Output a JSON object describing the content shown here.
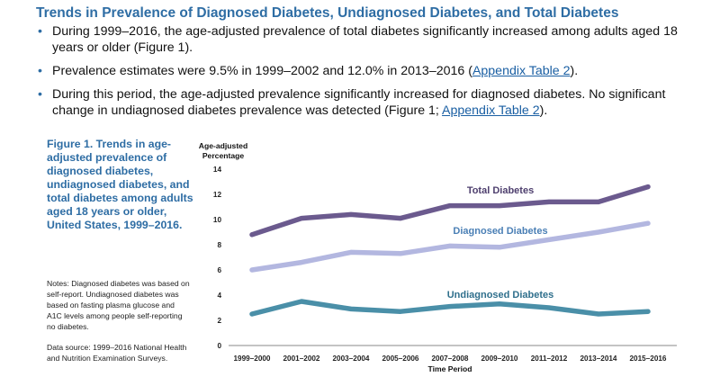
{
  "heading": "Trends in Prevalence of Diagnosed Diabetes, Undiagnosed Diabetes, and Total Diabetes",
  "bullets": [
    {
      "text": "During 1999–2016, the age-adjusted prevalence of total diabetes significantly increased among adults aged 18 years or older (Figure 1)."
    },
    {
      "before": "Prevalence estimates were 9.5% in 1999–2002 and 12.0% in 2013–2016 (",
      "link": "Appendix Table 2",
      "after": ")."
    },
    {
      "before": "During this period, the age-adjusted prevalence significantly increased for diagnosed diabetes. No significant change in undiagnosed diabetes prevalence was detected (Figure 1; ",
      "link": "Appendix Table 2",
      "after": ")."
    }
  ],
  "figure": {
    "title": "Figure 1. Trends in age-adjusted prevalence of diagnosed diabetes, undiagnosed diabetes, and total diabetes among adults aged 18 years or older, United States, 1999–2016.",
    "notes": "Notes: Diagnosed diabetes was based on self-report. Undiagnosed diabetes was based on fasting plasma glucose and A1C levels among people self-reporting no diabetes.",
    "source": "Data source: 1999–2016 National Health and Nutrition Examination Surveys."
  },
  "chart_data": {
    "type": "line",
    "ylabel": "Age-adjusted Percentage",
    "xlabel": "Time Period",
    "ylim": [
      0,
      14
    ],
    "yticks": [
      0,
      2,
      4,
      6,
      8,
      10,
      12,
      14
    ],
    "categories": [
      "1999–2000",
      "2001–2002",
      "2003–2004",
      "2005–2006",
      "2007–2008",
      "2009–2010",
      "2011–2012",
      "2013–2014",
      "2015–2016"
    ],
    "grid": false,
    "legend": "inline labels",
    "series": [
      {
        "name": "Total Diabetes",
        "color": "#6b5a8e",
        "values": [
          8.8,
          10.1,
          10.4,
          10.1,
          11.1,
          11.1,
          11.4,
          11.4,
          12.6
        ]
      },
      {
        "name": "Diagnosed Diabetes",
        "color": "#b3b7e0",
        "values": [
          6.0,
          6.6,
          7.4,
          7.3,
          7.9,
          7.8,
          8.4,
          9.0,
          9.7
        ]
      },
      {
        "name": "Undiagnosed Diabetes",
        "color": "#4a8fa8",
        "values": [
          2.5,
          3.5,
          2.9,
          2.7,
          3.1,
          3.3,
          3.0,
          2.5,
          2.7
        ]
      }
    ]
  }
}
